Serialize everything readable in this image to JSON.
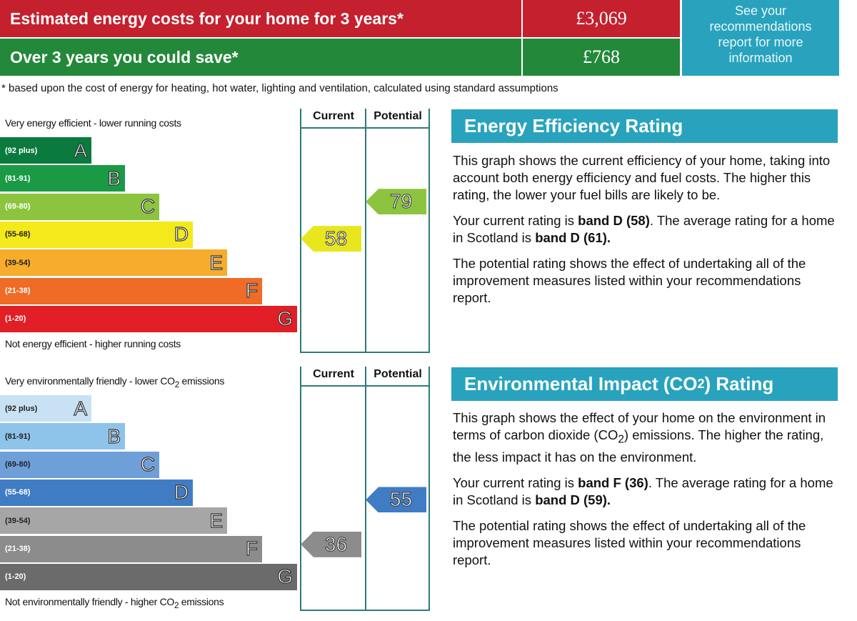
{
  "costs": {
    "row1_label": "Estimated energy costs for your home for 3 years*",
    "row1_value": "£3,069",
    "row2_label": "Over 3 years you could save*",
    "row2_value": "£768",
    "see_box": "See your recommendations report for more information",
    "footnote": "* based upon the cost of energy for heating, hot water, lighting and ventilation, calculated using standard assumptions",
    "colors": {
      "red": "#c4202e",
      "green": "#24883a",
      "teal": "#29a3bd"
    }
  },
  "energy_chart": {
    "top_label": "Very energy efficient - lower running costs",
    "bottom_label": "Not energy efficient - higher running costs",
    "col_current": "Current",
    "col_potential": "Potential",
    "bands": [
      {
        "letter": "A",
        "range": "(92 plus)",
        "color": "#0b7a3e"
      },
      {
        "letter": "B",
        "range": "(81-91)",
        "color": "#1a9a45"
      },
      {
        "letter": "C",
        "range": "(69-80)",
        "color": "#8cc43f"
      },
      {
        "letter": "D",
        "range": "(55-68)",
        "color": "#f4e91b"
      },
      {
        "letter": "E",
        "range": "(39-54)",
        "color": "#f7ac2b"
      },
      {
        "letter": "F",
        "range": "(21-38)",
        "color": "#ef6b26"
      },
      {
        "letter": "G",
        "range": "(1-20)",
        "color": "#e21f26"
      }
    ],
    "current": {
      "value": "58",
      "band": "D",
      "color": "#e8e61e"
    },
    "potential": {
      "value": "79",
      "band": "C",
      "color": "#8cc43f"
    }
  },
  "co2_chart": {
    "top_label_pre": "Very environmentally friendly - lower CO",
    "top_label_post": " emissions",
    "bottom_label_pre": "Not environmentally friendly - higher CO",
    "bottom_label_post": " emissions",
    "sub": "2",
    "col_current": "Current",
    "col_potential": "Potential",
    "bands": [
      {
        "letter": "A",
        "range": "(92 plus)",
        "color": "#c8e2f4"
      },
      {
        "letter": "B",
        "range": "(81-91)",
        "color": "#8ec3ea"
      },
      {
        "letter": "C",
        "range": "(69-80)",
        "color": "#6f9fd8"
      },
      {
        "letter": "D",
        "range": "(55-68)",
        "color": "#3f7cc4"
      },
      {
        "letter": "E",
        "range": "(39-54)",
        "color": "#a6a6a6"
      },
      {
        "letter": "F",
        "range": "(21-38)",
        "color": "#8c8c8c"
      },
      {
        "letter": "G",
        "range": "(1-20)",
        "color": "#6b6b6b"
      }
    ],
    "current": {
      "value": "36",
      "band": "F",
      "color": "#8c8c8c"
    },
    "potential": {
      "value": "55",
      "band": "D",
      "color": "#3f7cc4"
    }
  },
  "eer": {
    "title": "Energy Efficiency Rating",
    "p1": "This graph shows the current efficiency of your home, taking into account both energy efficiency and fuel costs. The higher this rating, the lower your fuel bills are likely to be.",
    "p2_pre": "Your current rating is ",
    "p2_b1": "band D (58)",
    "p2_mid": ". The average rating for a home in Scotland is ",
    "p2_b2": "band D (61).",
    "p3": "The potential rating shows the effect of undertaking all of the improvement measures listed within your recommendations report."
  },
  "eir": {
    "title_pre": "Environmental Impact (CO",
    "title_sub": "2",
    "title_post": ") Rating",
    "p1_pre": "This graph shows the effect of your home on the environment in terms of carbon dioxide (CO",
    "p1_sub": "2",
    "p1_post": ") emissions. The higher the rating, the less impact it has on the environment.",
    "p2_pre": "Your current rating is ",
    "p2_b1": "band F (36)",
    "p2_mid": ". The average rating for a home in Scotland is ",
    "p2_b2": "band D (59).",
    "p3": "The potential rating shows the effect of undertaking all of the improvement measures listed within your recommendations report."
  }
}
